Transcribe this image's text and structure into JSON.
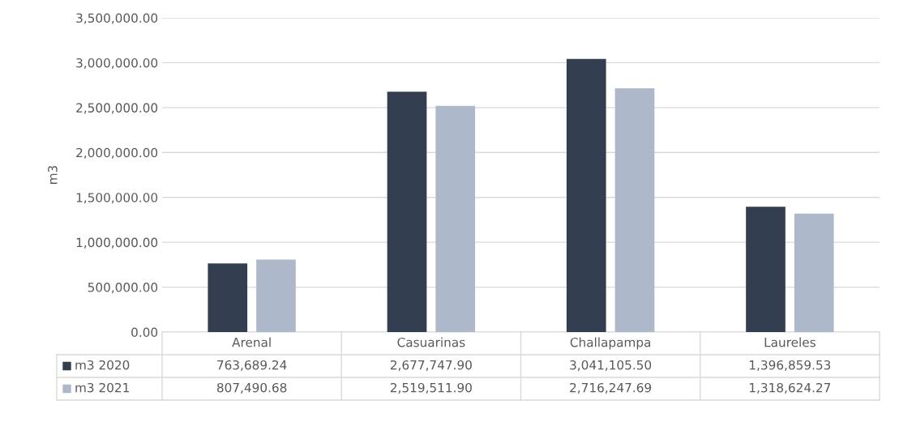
{
  "chart_data": {
    "type": "bar",
    "ylabel": "m3",
    "categories": [
      "Arenal",
      "Casuarinas",
      "Challapampa",
      "Laureles"
    ],
    "series": [
      {
        "name": "m3 2020",
        "color": "#333f50",
        "values": [
          763689.24,
          2677747.9,
          3041105.5,
          1396859.53
        ],
        "value_labels": [
          "763,689.24",
          "2,677,747.90",
          "3,041,105.50",
          "1,396,859.53"
        ]
      },
      {
        "name": "m3 2021",
        "color": "#adb9ca",
        "values": [
          807490.68,
          2519511.9,
          2716247.69,
          1318624.27
        ],
        "value_labels": [
          "807,490.68",
          "2,519,511.90",
          "2,716,247.69",
          "1,318,624.27"
        ]
      }
    ],
    "ylim": [
      0,
      3500000
    ],
    "yticks": [
      {
        "value": 0,
        "label": "0.00"
      },
      {
        "value": 500000,
        "label": "500,000.00"
      },
      {
        "value": 1000000,
        "label": "1,000,000.00"
      },
      {
        "value": 1500000,
        "label": "1,500,000.00"
      },
      {
        "value": 2000000,
        "label": "2,000,000.00"
      },
      {
        "value": 2500000,
        "label": "2,500,000.00"
      },
      {
        "value": 3000000,
        "label": "3,000,000.00"
      },
      {
        "value": 3500000,
        "label": "3,500,000.00"
      }
    ],
    "grid": "y",
    "legend": "bottom"
  }
}
